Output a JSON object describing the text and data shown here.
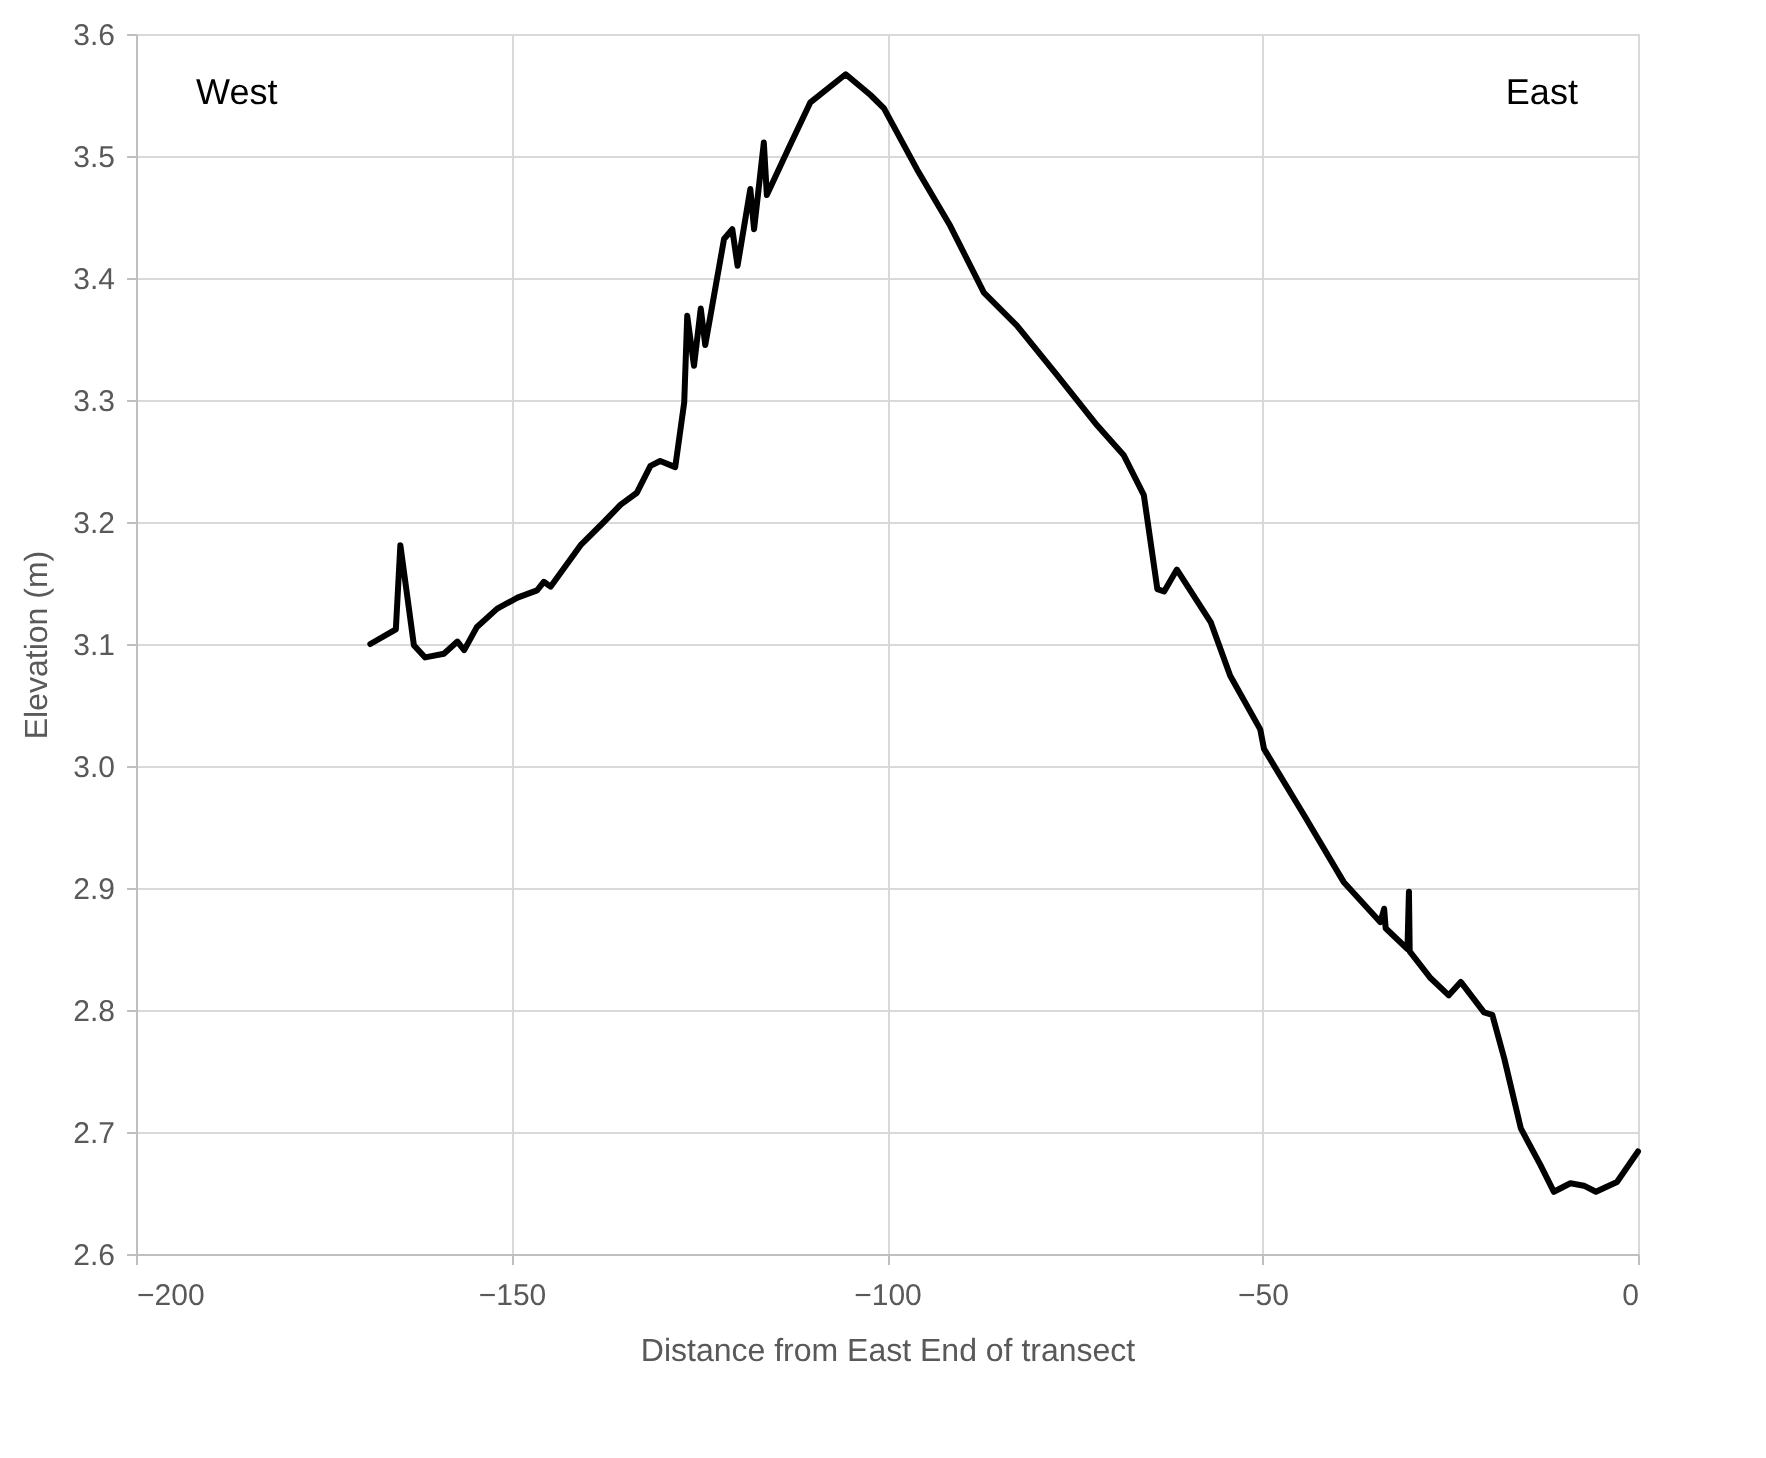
{
  "chart_data": {
    "type": "line",
    "xlabel": "Distance from East End of transect",
    "ylabel": "Elevation (m)",
    "annotations": [
      "West",
      "East"
    ],
    "xlim": [
      -200,
      0
    ],
    "xticks": [
      -200,
      -150,
      -100,
      -50,
      0
    ],
    "ylim": [
      2.6,
      3.6
    ],
    "yticks": [
      {
        "value": 2.6,
        "label": "2.6"
      },
      {
        "value": 2.7,
        "label": "2.7"
      },
      {
        "value": 2.8,
        "label": "2.8"
      },
      {
        "value": 2.9,
        "label": "2.9"
      },
      {
        "value": 3.0,
        "label": "3.0"
      },
      {
        "value": 3.1,
        "label": "3.1"
      },
      {
        "value": 3.2,
        "label": "3.2"
      },
      {
        "value": 3.3,
        "label": "3.3"
      },
      {
        "value": 3.4,
        "label": "3.4"
      },
      {
        "value": 3.5,
        "label": "3.5"
      },
      {
        "value": 3.6,
        "label": "3.6"
      }
    ],
    "grid": true,
    "marker": "none",
    "line_style": "solid",
    "series": [
      {
        "color": "#000000",
        "x": [
          -168.8,
          -165.4,
          -164.8,
          -163.0,
          -161.5,
          -159.0,
          -157.2,
          -156.3,
          -154.6,
          -151.9,
          -149.2,
          -146.6,
          -145.7,
          -144.8,
          -140.8,
          -137.7,
          -135.5,
          -133.3,
          -131.5,
          -130.2,
          -128.2,
          -127.0,
          -126.6,
          -125.7,
          -124.8,
          -124.2,
          -121.7,
          -120.6,
          -119.9,
          -118.2,
          -117.7,
          -116.4,
          -116.0,
          -112.9,
          -110.2,
          -105.5,
          -102.2,
          -100.4,
          -96.0,
          -91.6,
          -87.1,
          -82.7,
          -77.3,
          -72.0,
          -68.5,
          -65.8,
          -64.0,
          -63.1,
          -61.4,
          -56.9,
          -54.3,
          -50.3,
          -49.8,
          -44.5,
          -39.2,
          -34.3,
          -33.8,
          -33.6,
          -30.7,
          -30.5,
          -30.4,
          -27.6,
          -25.2,
          -23.6,
          -20.5,
          -19.4,
          -17.8,
          -15.6,
          -13.0,
          -11.2,
          -9.0,
          -7.2,
          -5.6,
          -2.8,
          0
        ],
        "values": [
          3.1,
          3.112,
          3.181,
          3.099,
          3.089,
          3.092,
          3.102,
          3.095,
          3.114,
          3.129,
          3.138,
          3.144,
          3.151,
          3.147,
          3.181,
          3.2,
          3.214,
          3.224,
          3.246,
          3.25,
          3.245,
          3.298,
          3.369,
          3.328,
          3.375,
          3.345,
          3.432,
          3.44,
          3.41,
          3.473,
          3.44,
          3.511,
          3.468,
          3.509,
          3.544,
          3.567,
          3.55,
          3.539,
          3.489,
          3.443,
          3.388,
          3.361,
          3.32,
          3.279,
          3.255,
          3.222,
          3.145,
          3.143,
          3.161,
          3.118,
          3.074,
          3.03,
          3.014,
          2.96,
          2.905,
          2.872,
          2.883,
          2.867,
          2.85,
          2.897,
          2.848,
          2.826,
          2.812,
          2.823,
          2.798,
          2.796,
          2.76,
          2.703,
          2.673,
          2.651,
          2.658,
          2.656,
          2.651,
          2.659,
          2.684
        ]
      }
    ]
  }
}
